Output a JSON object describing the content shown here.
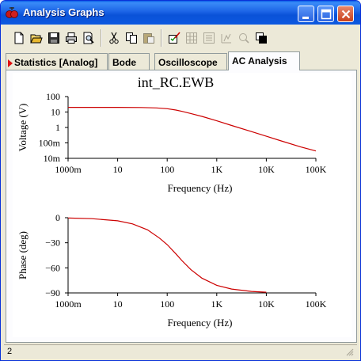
{
  "window": {
    "title": "Analysis Graphs"
  },
  "tabs": [
    {
      "label": "Statistics [Analog]",
      "active": false,
      "marked": true
    },
    {
      "label": "Bode",
      "active": false
    },
    {
      "label": "Oscilloscope",
      "active": false
    },
    {
      "label": "AC Analysis",
      "active": true
    }
  ],
  "toolbar": [
    "new-icon",
    "open-icon",
    "save-icon",
    "print-icon",
    "print-preview-icon",
    "cut-icon",
    "copy-icon",
    "paste-icon",
    "properties-icon",
    "grid-icon",
    "legend-icon",
    "cursor-icon",
    "zoom-icon",
    "reverse-colors-icon"
  ],
  "plot_title": "int_RC.EWB",
  "status": {
    "text": "2"
  },
  "colors": {
    "trace": "#cc0000",
    "titlebar": "#0a52d8"
  },
  "chart_data": [
    {
      "type": "line",
      "ylabel": "Voltage (V)",
      "xlabel": "Frequency (Hz)",
      "x_scale": "log",
      "y_scale": "log",
      "xlim": [
        1,
        100000
      ],
      "ylim": [
        0.01,
        100
      ],
      "x_ticks": [
        1,
        10,
        100,
        1000,
        10000,
        100000
      ],
      "x_tick_labels": [
        "1000m",
        "10",
        "100",
        "1K",
        "10K",
        "100K"
      ],
      "y_ticks": [
        0.01,
        0.1,
        1,
        10,
        100
      ],
      "y_tick_labels": [
        "10m",
        "100m",
        "1",
        "10",
        "100"
      ],
      "series": [
        {
          "x": [
            1,
            3,
            10,
            30,
            60,
            100,
            150,
            200,
            300,
            500,
            1000,
            2000,
            5000,
            10000,
            20000,
            50000,
            100000
          ],
          "y": [
            20,
            20,
            20,
            19.5,
            18.5,
            16.5,
            13.5,
            11,
            8,
            5.2,
            2.7,
            1.35,
            0.54,
            0.27,
            0.135,
            0.054,
            0.03
          ]
        }
      ]
    },
    {
      "type": "line",
      "ylabel": "Phase (deg)",
      "xlabel": "Frequency (Hz)",
      "x_scale": "log",
      "y_scale": "linear",
      "xlim": [
        1,
        100000
      ],
      "ylim": [
        -90,
        0
      ],
      "x_ticks": [
        1,
        10,
        100,
        1000,
        10000,
        100000
      ],
      "x_tick_labels": [
        "1000m",
        "10",
        "100",
        "1K",
        "10K",
        "100K"
      ],
      "y_ticks": [
        0,
        -30,
        -60,
        -90
      ],
      "y_tick_labels": [
        "0",
        "−30",
        "−60",
        "−90"
      ],
      "series": [
        {
          "x": [
            1,
            3,
            10,
            20,
            40,
            70,
            100,
            150,
            200,
            300,
            500,
            1000,
            2000,
            5000,
            10000
          ],
          "y": [
            -0.4,
            -1.1,
            -3.7,
            -7.4,
            -14.5,
            -24.4,
            -32.2,
            -43.3,
            -51.5,
            -62.1,
            -72.3,
            -80.9,
            -85.4,
            -88.2,
            -89.1
          ]
        }
      ]
    }
  ]
}
